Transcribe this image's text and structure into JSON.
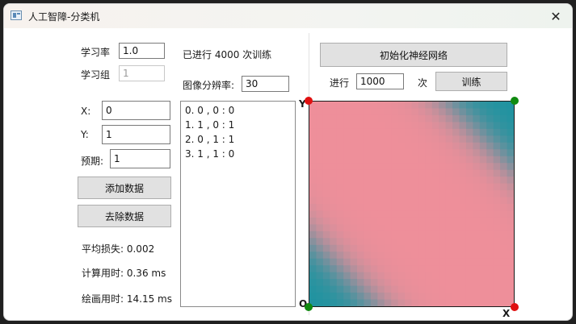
{
  "window": {
    "title": "人工智障-分类机",
    "icon": "app-window-icon",
    "close_glyph": "✕"
  },
  "params": {
    "learning_rate_label": "学习率",
    "learning_rate_value": "1.0",
    "learning_group_label": "学习组",
    "learning_group_value": "1"
  },
  "inputs": {
    "x_label": "X:",
    "x_value": "0",
    "y_label": "Y:",
    "y_value": "1",
    "expected_label": "预期:",
    "expected_value": "1"
  },
  "buttons": {
    "add_data": "添加数据",
    "remove_data": "去除数据",
    "init_network": "初始化神经网络",
    "train": "训练"
  },
  "stats": {
    "avg_loss": "平均损失: 0.002",
    "compute_time": "计算用时: 0.36 ms",
    "draw_time": "绘画用时: 14.15 ms"
  },
  "middle": {
    "trained_info": "已进行 4000 次训练",
    "resolution_label": "图像分辨率:",
    "resolution_value": "30"
  },
  "data_list": [
    "0. 0 , 0 : 0",
    "1. 1 , 0 : 1",
    "2. 0 , 1 : 1",
    "3. 1 , 1 : 0"
  ],
  "training": {
    "run_label": "进行",
    "iterations_value": "1000",
    "times_label": "次"
  },
  "plot": {
    "y_axis_letter": "Y",
    "origin_letter": "O",
    "x_axis_letter": "X",
    "color_positive": "#ee8f9a",
    "color_negative": "#1d93a0",
    "dot_red": "#e01010",
    "dot_green": "#108a10",
    "resolution": 30
  }
}
